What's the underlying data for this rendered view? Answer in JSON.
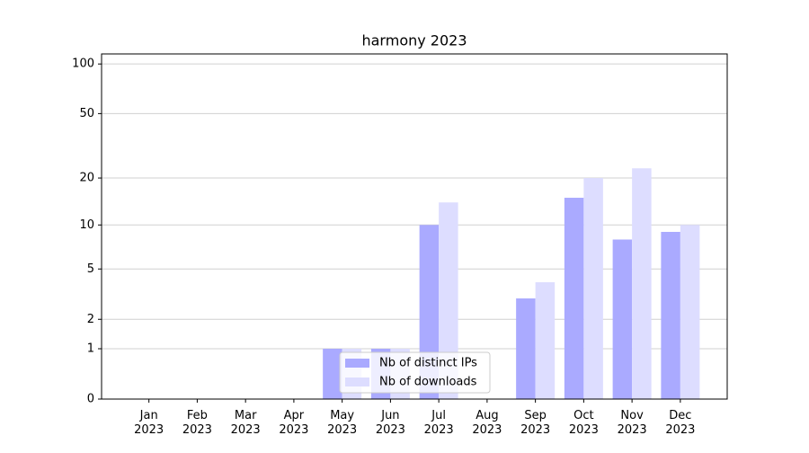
{
  "chart_data": {
    "type": "bar",
    "title": "harmony 2023",
    "categories": [
      "Jan 2023",
      "Feb 2023",
      "Mar 2023",
      "Apr 2023",
      "May 2023",
      "Jun 2023",
      "Jul 2023",
      "Aug 2023",
      "Sep 2023",
      "Oct 2023",
      "Nov 2023",
      "Dec 2023"
    ],
    "series": [
      {
        "name": "Nb of distinct IPs",
        "color": "#aaaaff",
        "values": [
          0,
          0,
          0,
          0,
          1,
          1,
          10,
          0,
          3,
          15,
          8,
          9
        ]
      },
      {
        "name": "Nb of downloads",
        "color": "#ddddff",
        "values": [
          0,
          0,
          0,
          0,
          1,
          1,
          14,
          0,
          4,
          20,
          23,
          10
        ]
      }
    ],
    "yscale": "log1p",
    "ylim": [
      0,
      115
    ],
    "yticks": [
      0,
      1,
      2,
      5,
      10,
      20,
      50,
      100
    ],
    "grid": true,
    "legend": "lower center"
  }
}
